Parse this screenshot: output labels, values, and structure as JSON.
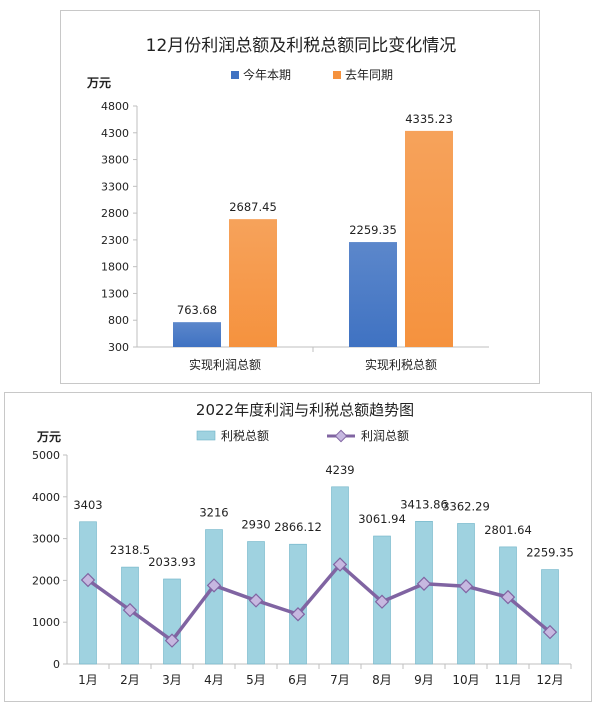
{
  "charts": [
    {
      "chart_data": {
        "type": "bar",
        "title": "12月份利润总额及利税总额同比变化情况",
        "ylabel": "万元",
        "ylim": [
          300,
          4800
        ],
        "yticks": [
          300,
          800,
          1300,
          1800,
          2300,
          2800,
          3300,
          3800,
          4300,
          4800
        ],
        "categories": [
          "实现利润总额",
          "实现利税总额"
        ],
        "series": [
          {
            "name": "今年本期",
            "values": [
              763.68,
              2259.35
            ],
            "labels": [
              "763.68",
              "2259.35"
            ],
            "color": "#3f72c2"
          },
          {
            "name": "去年同期",
            "values": [
              2687.45,
              4335.23
            ],
            "labels": [
              "2687.45",
              "4335.23"
            ],
            "color": "#f5923e"
          }
        ],
        "legend_position": "top",
        "grid": false
      }
    },
    {
      "chart_data": {
        "type": "bar",
        "title": "2022年度利润与利税总额趋势图",
        "ylabel": "万元",
        "ylim": [
          0,
          5000
        ],
        "yticks": [
          0,
          1000,
          2000,
          3000,
          4000,
          5000
        ],
        "categories": [
          "1月",
          "2月",
          "3月",
          "4月",
          "5月",
          "6月",
          "7月",
          "8月",
          "9月",
          "10月",
          "11月",
          "12月"
        ],
        "series": [
          {
            "name": "利税总额",
            "kind": "bar",
            "color": "#9fd2e0",
            "values": [
              3403,
              2318.5,
              2033.93,
              3216,
              2930,
              2866.12,
              4239,
              3061.94,
              3413.86,
              3362.29,
              2801.64,
              2259.35
            ],
            "labels": [
              "3403",
              "2318.5",
              "2033.93",
              "3216",
              "2930",
              "2866.12",
              "4239",
              "3061.94",
              "3413.86",
              "3362.29",
              "2801.64",
              "2259.35"
            ]
          },
          {
            "name": "利润总额",
            "kind": "line",
            "color": "#8064a2",
            "values": [
              2010,
              1290,
              560,
              1880,
              1520,
              1190,
              2380,
              1490,
              1920,
              1860,
              1600,
              764
            ]
          }
        ],
        "legend_position": "top",
        "grid": false
      }
    }
  ]
}
